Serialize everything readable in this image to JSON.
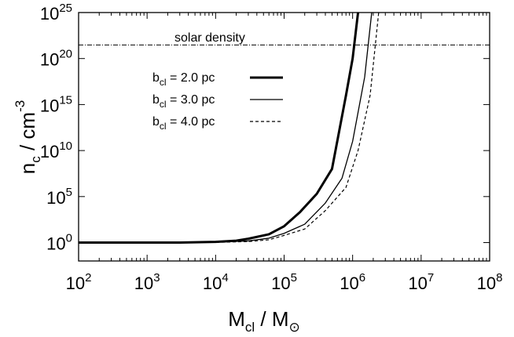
{
  "chart_data": {
    "type": "line",
    "xscale": "log",
    "yscale": "log",
    "xlim": [
      100,
      100000000
    ],
    "ylim": [
      0.01,
      1e+25
    ],
    "x_ticks": [
      {
        "base": "10",
        "exp": "2",
        "value": 100
      },
      {
        "base": "10",
        "exp": "3",
        "value": 1000
      },
      {
        "base": "10",
        "exp": "4",
        "value": 10000
      },
      {
        "base": "10",
        "exp": "5",
        "value": 100000
      },
      {
        "base": "10",
        "exp": "6",
        "value": 1000000
      },
      {
        "base": "10",
        "exp": "7",
        "value": 10000000
      },
      {
        "base": "10",
        "exp": "8",
        "value": 100000000
      }
    ],
    "y_ticks": [
      {
        "base": "10",
        "exp": "0",
        "value": 1
      },
      {
        "base": "10",
        "exp": "5",
        "value": 100000
      },
      {
        "base": "10",
        "exp": "10",
        "value": 10000000000.0
      },
      {
        "base": "10",
        "exp": "15",
        "value": 1000000000000000.0
      },
      {
        "base": "10",
        "exp": "20",
        "value": 1e+20
      },
      {
        "base": "10",
        "exp": "25",
        "value": 1e+25
      }
    ],
    "xlabel": {
      "main": "M",
      "sub": "cl",
      "rest": " / M",
      "symbol": "⊙"
    },
    "ylabel": {
      "main": "n",
      "sub": "c",
      "rest": " / cm",
      "sup": "-3"
    },
    "hline": {
      "y": 3e+21,
      "label": "solar density",
      "style": "dash-dot"
    },
    "legend": {
      "position": "upper-left"
    },
    "series": [
      {
        "legend_main": "b",
        "legend_sub": "cl",
        "legend_rest": " = 2.0 pc",
        "line_width": 3,
        "dash": "none",
        "x": [
          100,
          1000,
          3000,
          10000,
          20000,
          30000,
          60000,
          100000,
          170000,
          300000,
          500000,
          800000,
          1000000,
          1200000
        ],
        "y": [
          1,
          1,
          1,
          1.2,
          1.6,
          2.6,
          8,
          60,
          2000,
          200000,
          100000000.0,
          1e+16,
          1e+20,
          1e+25
        ]
      },
      {
        "legend_main": "b",
        "legend_sub": "cl",
        "legend_rest": " = 3.0 pc",
        "line_width": 1.3,
        "dash": "none",
        "x": [
          100,
          1000,
          10000,
          30000,
          60000,
          100000,
          200000,
          400000,
          700000,
          1000000,
          1500000,
          1900000
        ],
        "y": [
          1,
          1,
          1.1,
          1.5,
          3,
          10,
          100,
          20000,
          10000000.0,
          100000000000.0,
          1e+18,
          1e+25
        ]
      },
      {
        "legend_main": "b",
        "legend_sub": "cl",
        "legend_rest": " = 4.0 pc",
        "line_width": 1.2,
        "dash": "4,3",
        "x": [
          100,
          1000,
          10000,
          30000,
          60000,
          100000,
          200000,
          400000,
          800000,
          1200000,
          1800000,
          2400000
        ],
        "y": [
          1,
          1,
          1.05,
          1.3,
          2,
          6,
          30,
          3000,
          1000000.0,
          10000000000.0,
          1e+16,
          1e+25
        ]
      }
    ]
  }
}
